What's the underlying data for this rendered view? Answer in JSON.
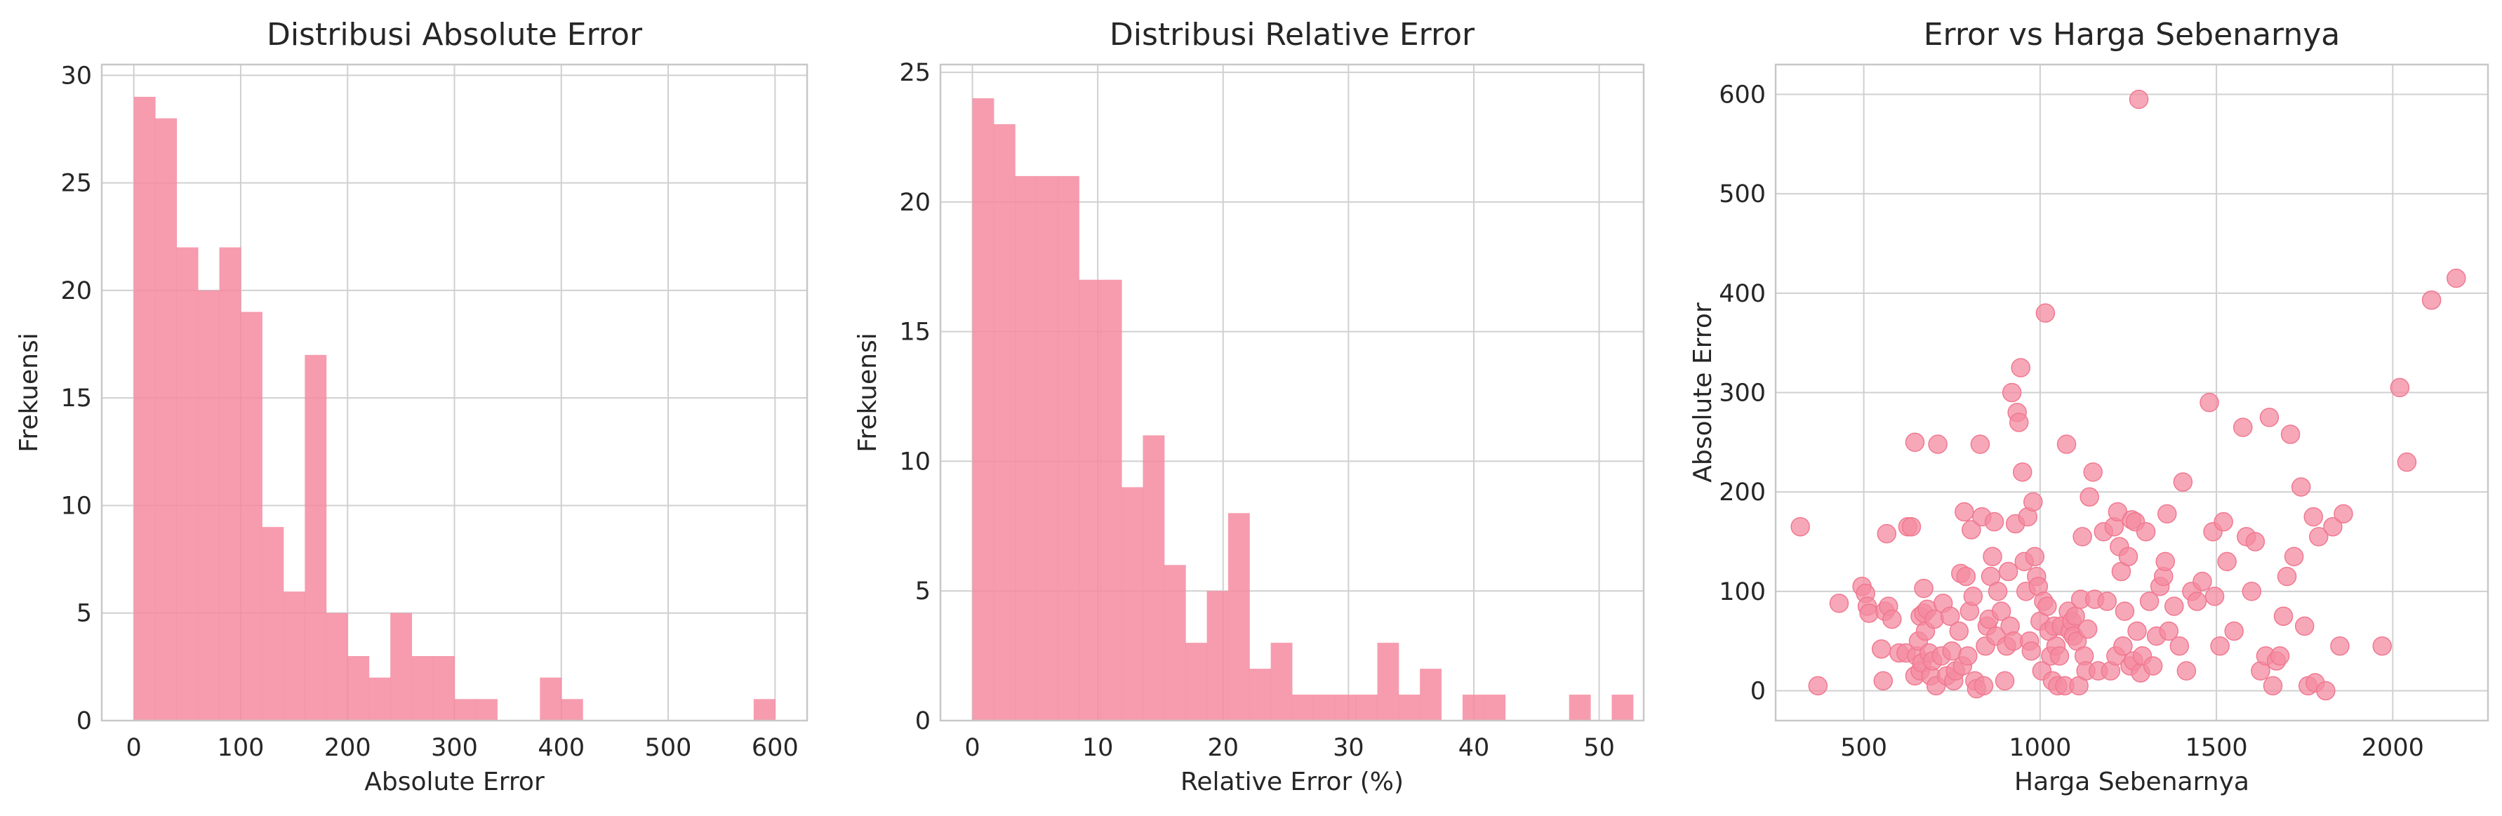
{
  "colors": {
    "accent": "#f48ba0",
    "grid": "#d0d0d0",
    "spine": "#c8c8c8",
    "text": "#262626"
  },
  "chart_data": [
    {
      "type": "bar",
      "subtype": "histogram",
      "title": "Distribusi Absolute Error",
      "xlabel": "Absolute Error",
      "ylabel": "Frekuensi",
      "xlim": [
        -30,
        630
      ],
      "ylim": [
        0,
        30.5
      ],
      "xticks": [
        0,
        100,
        200,
        300,
        400,
        500,
        600
      ],
      "yticks": [
        0,
        5,
        10,
        15,
        20,
        25,
        30
      ],
      "grid": true,
      "bin_start": 0,
      "bin_width": 20,
      "counts": [
        29,
        28,
        22,
        20,
        22,
        19,
        9,
        6,
        17,
        5,
        3,
        2,
        5,
        3,
        3,
        1,
        1,
        0,
        0,
        2,
        1,
        0,
        0,
        0,
        0,
        0,
        0,
        0,
        0,
        1
      ]
    },
    {
      "type": "bar",
      "subtype": "histogram",
      "title": "Distribusi Relative Error",
      "xlabel": "Relative Error (%)",
      "ylabel": "Frekuensi",
      "xlim": [
        -2.55,
        53.55
      ],
      "ylim": [
        0,
        25.3
      ],
      "xticks": [
        0,
        10,
        20,
        30,
        40,
        50
      ],
      "yticks": [
        0,
        5,
        10,
        15,
        20,
        25
      ],
      "grid": true,
      "bin_start": 0,
      "bin_width": 1.7,
      "counts": [
        24,
        23,
        21,
        21,
        21,
        17,
        17,
        9,
        11,
        6,
        3,
        5,
        8,
        2,
        3,
        1,
        1,
        1,
        1,
        3,
        1,
        2,
        0,
        1,
        1,
        0,
        0,
        0,
        1,
        0,
        1
      ]
    },
    {
      "type": "scatter",
      "title": "Error vs Harga Sebenarnya",
      "xlabel": "Harga Sebenarnya",
      "ylabel": "Absolute Error",
      "xlim": [
        250,
        2270
      ],
      "ylim": [
        -30,
        630
      ],
      "xticks": [
        500,
        1000,
        1500,
        2000
      ],
      "yticks": [
        0,
        100,
        200,
        300,
        400,
        500,
        600
      ],
      "grid": true,
      "points": [
        [
          320,
          165
        ],
        [
          370,
          5
        ],
        [
          430,
          88
        ],
        [
          495,
          105
        ],
        [
          505,
          98
        ],
        [
          510,
          85
        ],
        [
          515,
          78
        ],
        [
          550,
          42
        ],
        [
          555,
          10
        ],
        [
          560,
          80
        ],
        [
          565,
          158
        ],
        [
          570,
          85
        ],
        [
          580,
          72
        ],
        [
          600,
          38
        ],
        [
          620,
          38
        ],
        [
          625,
          165
        ],
        [
          635,
          165
        ],
        [
          645,
          250
        ],
        [
          645,
          15
        ],
        [
          650,
          35
        ],
        [
          655,
          50
        ],
        [
          660,
          75
        ],
        [
          660,
          20
        ],
        [
          665,
          28
        ],
        [
          670,
          103
        ],
        [
          670,
          78
        ],
        [
          675,
          60
        ],
        [
          680,
          82
        ],
        [
          685,
          38
        ],
        [
          690,
          15
        ],
        [
          695,
          30
        ],
        [
          700,
          72
        ],
        [
          705,
          5
        ],
        [
          710,
          248
        ],
        [
          720,
          35
        ],
        [
          725,
          88
        ],
        [
          735,
          15
        ],
        [
          745,
          75
        ],
        [
          750,
          40
        ],
        [
          755,
          10
        ],
        [
          760,
          20
        ],
        [
          770,
          60
        ],
        [
          775,
          118
        ],
        [
          780,
          25
        ],
        [
          785,
          180
        ],
        [
          790,
          115
        ],
        [
          795,
          35
        ],
        [
          800,
          80
        ],
        [
          805,
          162
        ],
        [
          810,
          95
        ],
        [
          815,
          10
        ],
        [
          820,
          2
        ],
        [
          830,
          248
        ],
        [
          835,
          175
        ],
        [
          840,
          5
        ],
        [
          845,
          45
        ],
        [
          850,
          65
        ],
        [
          855,
          72
        ],
        [
          860,
          115
        ],
        [
          865,
          135
        ],
        [
          870,
          170
        ],
        [
          875,
          55
        ],
        [
          880,
          100
        ],
        [
          890,
          80
        ],
        [
          900,
          10
        ],
        [
          905,
          45
        ],
        [
          910,
          120
        ],
        [
          915,
          65
        ],
        [
          920,
          300
        ],
        [
          925,
          50
        ],
        [
          930,
          168
        ],
        [
          935,
          280
        ],
        [
          940,
          270
        ],
        [
          945,
          325
        ],
        [
          950,
          220
        ],
        [
          955,
          130
        ],
        [
          960,
          100
        ],
        [
          965,
          175
        ],
        [
          970,
          50
        ],
        [
          975,
          40
        ],
        [
          980,
          190
        ],
        [
          985,
          135
        ],
        [
          990,
          115
        ],
        [
          995,
          105
        ],
        [
          1000,
          70
        ],
        [
          1005,
          20
        ],
        [
          1010,
          90
        ],
        [
          1015,
          380
        ],
        [
          1020,
          85
        ],
        [
          1025,
          60
        ],
        [
          1030,
          35
        ],
        [
          1035,
          10
        ],
        [
          1040,
          65
        ],
        [
          1045,
          45
        ],
        [
          1050,
          5
        ],
        [
          1055,
          35
        ],
        [
          1060,
          65
        ],
        [
          1070,
          5
        ],
        [
          1075,
          248
        ],
        [
          1080,
          80
        ],
        [
          1085,
          60
        ],
        [
          1090,
          70
        ],
        [
          1095,
          55
        ],
        [
          1100,
          75
        ],
        [
          1105,
          50
        ],
        [
          1110,
          5
        ],
        [
          1115,
          92
        ],
        [
          1120,
          155
        ],
        [
          1125,
          35
        ],
        [
          1130,
          20
        ],
        [
          1135,
          62
        ],
        [
          1140,
          195
        ],
        [
          1150,
          220
        ],
        [
          1155,
          92
        ],
        [
          1165,
          20
        ],
        [
          1180,
          160
        ],
        [
          1190,
          90
        ],
        [
          1200,
          20
        ],
        [
          1210,
          165
        ],
        [
          1215,
          35
        ],
        [
          1220,
          180
        ],
        [
          1225,
          145
        ],
        [
          1230,
          120
        ],
        [
          1235,
          45
        ],
        [
          1240,
          80
        ],
        [
          1250,
          135
        ],
        [
          1255,
          25
        ],
        [
          1260,
          172
        ],
        [
          1265,
          30
        ],
        [
          1270,
          170
        ],
        [
          1275,
          60
        ],
        [
          1280,
          595
        ],
        [
          1285,
          18
        ],
        [
          1290,
          35
        ],
        [
          1300,
          160
        ],
        [
          1310,
          90
        ],
        [
          1320,
          25
        ],
        [
          1330,
          55
        ],
        [
          1340,
          105
        ],
        [
          1350,
          115
        ],
        [
          1355,
          130
        ],
        [
          1360,
          178
        ],
        [
          1365,
          60
        ],
        [
          1380,
          85
        ],
        [
          1395,
          45
        ],
        [
          1405,
          210
        ],
        [
          1415,
          20
        ],
        [
          1430,
          100
        ],
        [
          1445,
          90
        ],
        [
          1460,
          110
        ],
        [
          1480,
          290
        ],
        [
          1490,
          160
        ],
        [
          1495,
          95
        ],
        [
          1510,
          45
        ],
        [
          1520,
          170
        ],
        [
          1530,
          130
        ],
        [
          1550,
          60
        ],
        [
          1575,
          265
        ],
        [
          1585,
          155
        ],
        [
          1600,
          100
        ],
        [
          1610,
          150
        ],
        [
          1625,
          20
        ],
        [
          1640,
          35
        ],
        [
          1650,
          275
        ],
        [
          1660,
          5
        ],
        [
          1670,
          30
        ],
        [
          1680,
          35
        ],
        [
          1690,
          75
        ],
        [
          1700,
          115
        ],
        [
          1710,
          258
        ],
        [
          1720,
          135
        ],
        [
          1740,
          205
        ],
        [
          1750,
          65
        ],
        [
          1760,
          5
        ],
        [
          1775,
          175
        ],
        [
          1780,
          8
        ],
        [
          1790,
          155
        ],
        [
          1810,
          0
        ],
        [
          1830,
          165
        ],
        [
          1850,
          45
        ],
        [
          1860,
          178
        ],
        [
          1970,
          45
        ],
        [
          2020,
          305
        ],
        [
          2040,
          230
        ],
        [
          2110,
          393
        ],
        [
          2180,
          415
        ]
      ]
    }
  ]
}
